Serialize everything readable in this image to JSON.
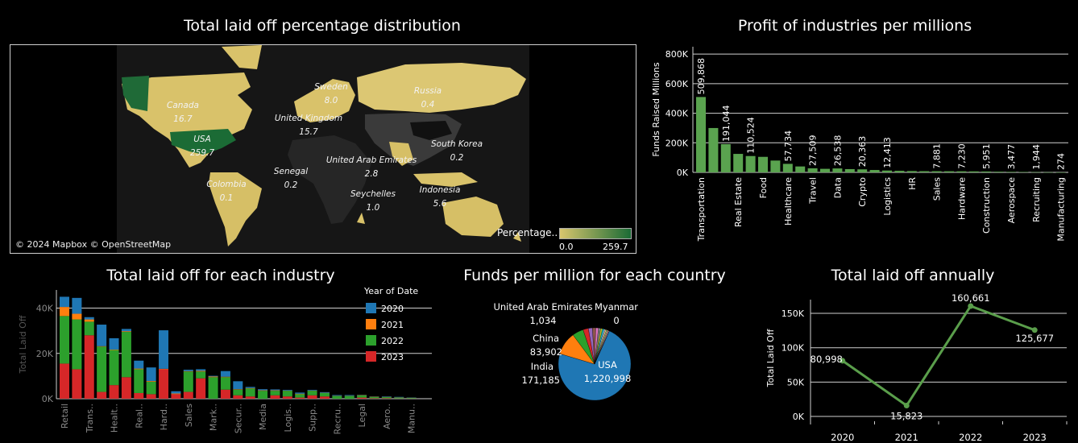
{
  "colors": {
    "accent": "#5a9e4b",
    "bar_green": "#5aa34f",
    "map_low": "#d8c66e",
    "map_high": "#1b6b35",
    "c2020": "#1f77b4",
    "c2021": "#ff7f0e",
    "c2022": "#2ca02c",
    "c2023": "#d62728"
  },
  "map": {
    "title": "Total laid off percentage distribution",
    "attribution": "© 2024 Mapbox © OpenStreetMap",
    "legend_title": "Percentage..",
    "legend_min": "0.0",
    "legend_max": "259.7",
    "labels": [
      {
        "name": "Canada",
        "value": "16.7"
      },
      {
        "name": "USA",
        "value": "259.7"
      },
      {
        "name": "Colombia",
        "value": "0.1"
      },
      {
        "name": "Sweden",
        "value": "8.0"
      },
      {
        "name": "United Kingdom",
        "value": "15.7"
      },
      {
        "name": "Senegal",
        "value": "0.2"
      },
      {
        "name": "United Arab Emirates",
        "value": "2.8"
      },
      {
        "name": "Seychelles",
        "value": "1.0"
      },
      {
        "name": "Russia",
        "value": "0.4"
      },
      {
        "name": "South Korea",
        "value": "0.2"
      },
      {
        "name": "Indonesia",
        "value": "5.6"
      }
    ]
  },
  "chart_data": [
    {
      "type": "bar",
      "title": "Profit of industries per millions",
      "ylabel": "Funds Raised Millions",
      "ylim": [
        0,
        850000
      ],
      "yticks": [
        "0K",
        "200K",
        "400K",
        "600K",
        "800K"
      ],
      "ytick_values": [
        0,
        200000,
        400000,
        600000,
        800000
      ],
      "categories": [
        "Transportation",
        "",
        "",
        "Real Estate",
        "",
        "Food",
        "",
        "Healthcare",
        "",
        "Travel",
        "",
        "Data",
        "",
        "Crypto",
        "",
        "Logistics",
        "",
        "HR",
        "",
        "Sales",
        "",
        "Hardware",
        "",
        "Construction",
        "",
        "Aerospace",
        "",
        "Recruiting",
        "",
        "Manufacturing"
      ],
      "values": [
        509868,
        300000,
        191044,
        125000,
        110524,
        105000,
        80000,
        57734,
        40000,
        27509,
        24000,
        26538,
        22000,
        20363,
        16000,
        12413,
        10500,
        9000,
        8000,
        7881,
        7500,
        7230,
        6600,
        5951,
        4500,
        3477,
        2800,
        1944,
        1000,
        274
      ],
      "data_labels": [
        "509,868",
        "",
        "191,044",
        "",
        "110,524",
        "",
        "",
        "57,734",
        "",
        "27,509",
        "",
        "26,538",
        "",
        "20,363",
        "",
        "12,413",
        "",
        "",
        "",
        "7,881",
        "",
        "7,230",
        "",
        "5,951",
        "",
        "3,477",
        "",
        "1,944",
        "",
        "274"
      ]
    },
    {
      "type": "bar",
      "stacked": true,
      "title": "Total laid off for each industry",
      "ylabel": "Total Laid Off",
      "ylim": [
        0,
        48000
      ],
      "yticks": [
        "0K",
        "20K",
        "40K"
      ],
      "ytick_values": [
        0,
        20000,
        40000
      ],
      "legend_title": "Year of Date",
      "legend_position": "top-right",
      "categories": [
        "Retail",
        "",
        "Trans..",
        "",
        "Healt..",
        "",
        "Real..",
        "",
        "Hard..",
        "",
        "Sales",
        "",
        "Mark..",
        "",
        "Secur..",
        "",
        "Media",
        "",
        "Logis..",
        "",
        "Supp..",
        "",
        "Recru..",
        "",
        "Legal",
        "",
        "Aero..",
        "",
        "Manu.."
      ],
      "series": [
        {
          "name": "2020",
          "color": "#1f77b4",
          "values": [
            4500,
            7000,
            1000,
            9500,
            5000,
            1000,
            3500,
            6000,
            17000,
            1000,
            600,
            700,
            300,
            2500,
            3500,
            500,
            500,
            400,
            300,
            500,
            300,
            300,
            300,
            300,
            100,
            100,
            200,
            200,
            100
          ]
        },
        {
          "name": "2021",
          "color": "#ff7f0e",
          "values": [
            4000,
            2500,
            1000,
            200,
            200,
            300,
            300,
            300,
            200,
            300,
            200,
            300,
            300,
            200,
            200,
            200,
            200,
            200,
            100,
            200,
            100,
            100,
            100,
            100,
            100,
            100,
            100,
            100,
            50
          ]
        },
        {
          "name": "2022",
          "color": "#2ca02c",
          "values": [
            21000,
            22000,
            6000,
            20000,
            15500,
            20000,
            10500,
            5500,
            0,
            0,
            9000,
            3000,
            9500,
            5500,
            2500,
            3500,
            3500,
            2000,
            2500,
            1500,
            2000,
            1500,
            1200,
            1200,
            1000,
            600,
            500,
            400,
            300
          ]
        },
        {
          "name": "2023",
          "color": "#d62728",
          "values": [
            15500,
            13000,
            28000,
            3000,
            6000,
            9500,
            2500,
            2000,
            13000,
            2000,
            3000,
            9000,
            0,
            4000,
            1500,
            1000,
            0,
            1500,
            1000,
            500,
            1500,
            1000,
            0,
            0,
            500,
            200,
            200,
            100,
            100
          ]
        }
      ]
    },
    {
      "type": "pie",
      "title": "Funds per million for each country",
      "slices": [
        {
          "label": "USA",
          "value": 1220998,
          "text": "1,220,998",
          "color": "#1f77b4"
        },
        {
          "label": "India",
          "value": 171185,
          "text": "171,185",
          "color": "#ff7f0e"
        },
        {
          "label": "China",
          "value": 83902,
          "text": "83,902",
          "color": "#2ca02c"
        },
        {
          "label": "",
          "value": 40000,
          "text": "",
          "color": "#d62728"
        },
        {
          "label": "",
          "value": 30000,
          "text": "",
          "color": "#9467bd"
        },
        {
          "label": "",
          "value": 25000,
          "text": "",
          "color": "#8c564b"
        },
        {
          "label": "",
          "value": 20000,
          "text": "",
          "color": "#e377c2"
        },
        {
          "label": "",
          "value": 16000,
          "text": "",
          "color": "#7f7f7f"
        },
        {
          "label": "",
          "value": 14000,
          "text": "",
          "color": "#bcbd22"
        },
        {
          "label": "",
          "value": 12000,
          "text": "",
          "color": "#17becf"
        },
        {
          "label": "",
          "value": 10000,
          "text": "",
          "color": "#aec7e8"
        },
        {
          "label": "",
          "value": 9000,
          "text": "",
          "color": "#ffbb78"
        },
        {
          "label": "",
          "value": 8000,
          "text": "",
          "color": "#98df8a"
        },
        {
          "label": "",
          "value": 7000,
          "text": "",
          "color": "#ff9896"
        },
        {
          "label": "",
          "value": 6000,
          "text": "",
          "color": "#c5b0d5"
        },
        {
          "label": "United Arab Emirates",
          "value": 1034,
          "text": "1,034",
          "color": "#c49c94"
        },
        {
          "label": "Myanmar",
          "value": 0,
          "text": "0",
          "color": "#f7b6d2"
        }
      ]
    },
    {
      "type": "line",
      "title": "Total laid off annually",
      "ylabel": "Total Laid Off",
      "ylim": [
        0,
        170000
      ],
      "yticks": [
        "0K",
        "50K",
        "100K",
        "150K"
      ],
      "ytick_values": [
        0,
        50000,
        100000,
        150000
      ],
      "x": [
        "2020",
        "2021",
        "2022",
        "2023"
      ],
      "values": [
        80998,
        15823,
        160661,
        125677
      ],
      "data_labels": [
        "80,998",
        "15,823",
        "160,661",
        "125,677"
      ]
    }
  ]
}
